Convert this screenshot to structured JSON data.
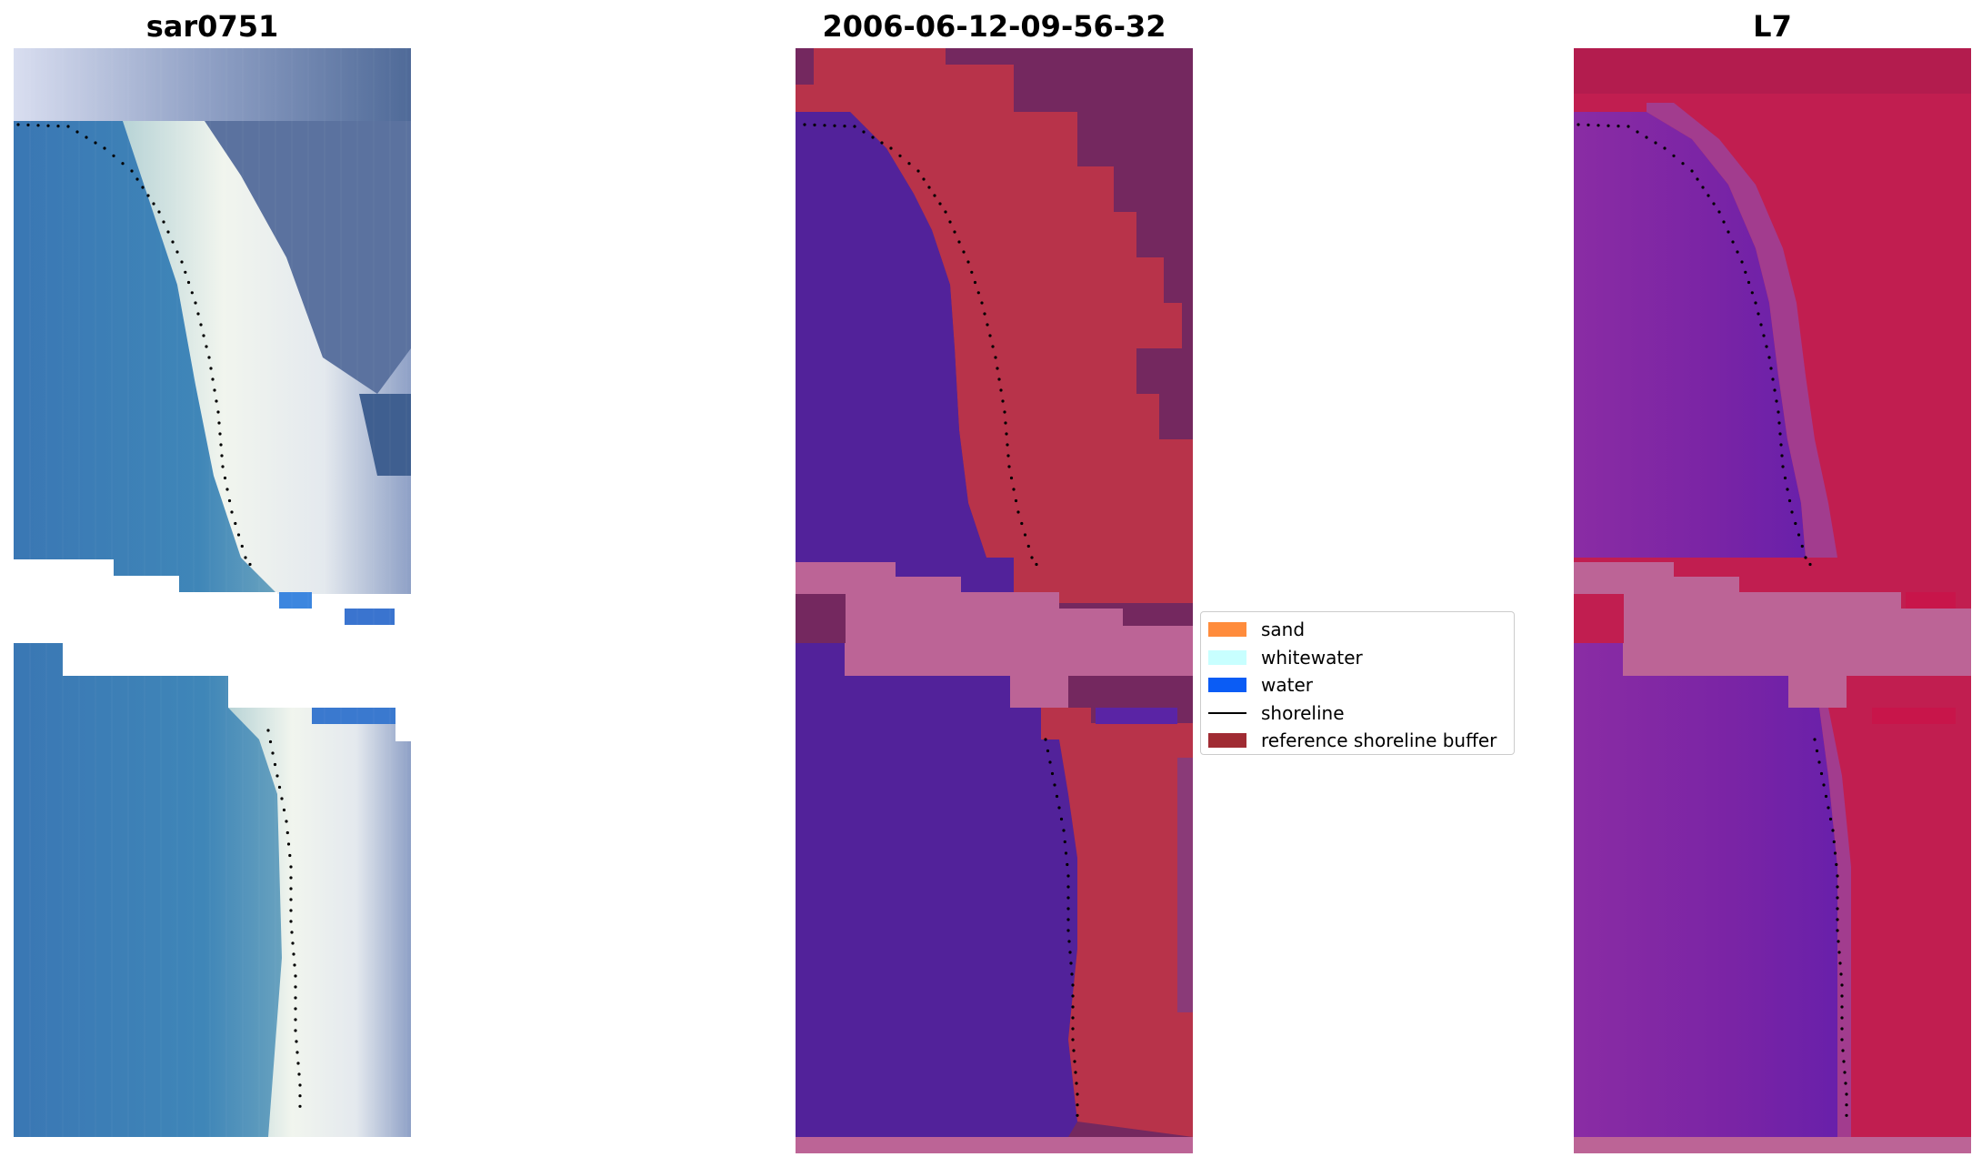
{
  "panels": [
    {
      "title": "sar0751"
    },
    {
      "title": "2006-06-12-09-56-32"
    },
    {
      "title": "L7"
    }
  ],
  "legend": {
    "items": [
      {
        "label": "sand",
        "color": "#ff8c3c",
        "kind": "patch"
      },
      {
        "label": "whitewater",
        "color": "#c8ffff",
        "kind": "patch"
      },
      {
        "label": "water",
        "color": "#0a5cf5",
        "kind": "patch"
      },
      {
        "label": "shoreline",
        "color": "#000000",
        "kind": "line"
      },
      {
        "label": "reference shoreline buffer",
        "color": "#a02b33",
        "kind": "patch"
      }
    ]
  },
  "colors": {
    "water_rgb": "#3b7fb8",
    "beach_rgb": "#eef2ee",
    "land_rgb": "#5a6f99",
    "water_class": "#52229a",
    "buffer_class": "#b8334a",
    "land_class": "#74285f",
    "nodata_band": "#bc6496",
    "water_false": "#7b2a9f",
    "land_false": "#c11e50"
  }
}
